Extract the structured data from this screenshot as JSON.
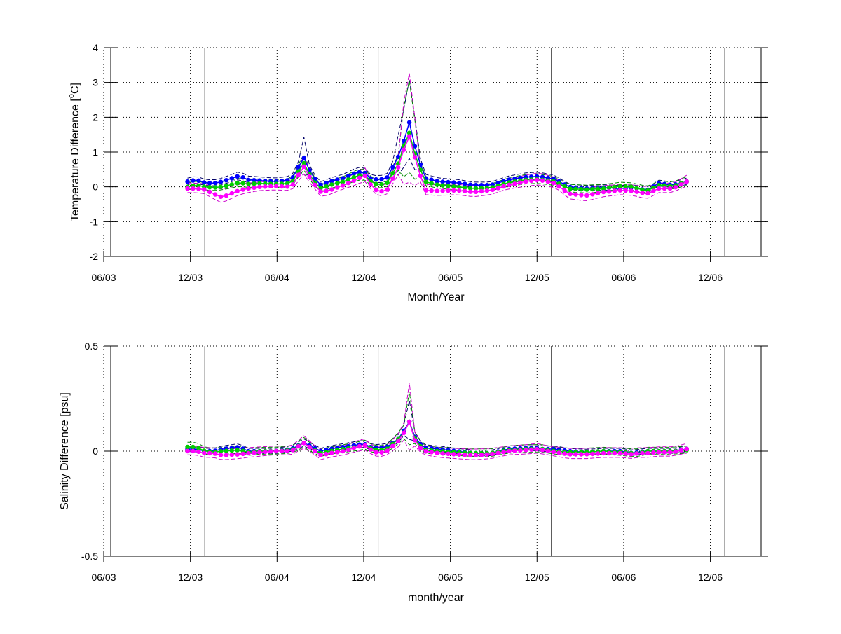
{
  "colors": {
    "background": "#ffffff",
    "axis": "#000000",
    "grid": "#000000",
    "blue": "#0000ff",
    "green": "#00cc00",
    "magenta": "#ff00ff",
    "dark_envelope": "#000066",
    "green_envelope": "#008800",
    "magenta_envelope": "#cc00cc"
  },
  "chart_data": [
    {
      "type": "line",
      "title": "",
      "xlabel": "Month/Year",
      "ylabel": "Temperature Difference [°C]",
      "ylabel_parts": {
        "pre": "Temperature Difference [",
        "sup": "o",
        "post": "C]"
      },
      "xlim": [
        2003.4167,
        2007.25
      ],
      "ylim": [
        -2,
        4
      ],
      "x_ticks": [
        {
          "x": 2003.4167,
          "label": "06/03"
        },
        {
          "x": 2003.9167,
          "label": "12/03"
        },
        {
          "x": 2004.4167,
          "label": "06/04"
        },
        {
          "x": 2004.9167,
          "label": "12/04"
        },
        {
          "x": 2005.4167,
          "label": "06/05"
        },
        {
          "x": 2005.9167,
          "label": "12/05"
        },
        {
          "x": 2006.4167,
          "label": "06/06"
        },
        {
          "x": 2006.9167,
          "label": "12/06"
        }
      ],
      "y_ticks": [
        {
          "y": -2,
          "label": "-2"
        },
        {
          "y": -1,
          "label": "-1"
        },
        {
          "y": 0,
          "label": "0"
        },
        {
          "y": 1,
          "label": "1"
        },
        {
          "y": 2,
          "label": "2"
        },
        {
          "y": 3,
          "label": "3"
        },
        {
          "y": 4,
          "label": "4"
        }
      ],
      "grid": true,
      "year_lines": [
        2004.0,
        2005.0,
        2006.0,
        2007.0
      ],
      "key_x": [
        2003.9,
        2003.95,
        2004.0,
        2004.05,
        2004.1,
        2004.2,
        2004.25,
        2004.32,
        2004.4,
        2004.5,
        2004.57,
        2004.62,
        2004.67,
        2004.72,
        2004.8,
        2004.88,
        2004.92,
        2004.95,
        2005.0,
        2005.05,
        2005.12,
        2005.15,
        2005.18,
        2005.22,
        2005.27,
        2005.35,
        2005.45,
        2005.55,
        2005.65,
        2005.75,
        2005.85,
        2005.92,
        2005.95,
        2006.02,
        2006.1,
        2006.2,
        2006.3,
        2006.4,
        2006.47,
        2006.5,
        2006.55,
        2006.62,
        2006.7,
        2006.78
      ],
      "series": [
        {
          "color": "blue",
          "values": [
            0.15,
            0.2,
            0.12,
            0.1,
            0.15,
            0.32,
            0.2,
            0.18,
            0.15,
            0.2,
            0.85,
            0.3,
            0.05,
            0.15,
            0.25,
            0.42,
            0.42,
            0.25,
            0.2,
            0.25,
            0.9,
            1.35,
            1.85,
            1.0,
            0.25,
            0.15,
            0.12,
            0.05,
            0.05,
            0.2,
            0.28,
            0.3,
            0.28,
            0.22,
            0.0,
            -0.05,
            -0.02,
            -0.05,
            -0.02,
            -0.05,
            -0.1,
            0.1,
            0.05,
            0.15
          ]
        },
        {
          "color": "green",
          "values": [
            0.0,
            0.05,
            0.0,
            -0.02,
            0.0,
            0.12,
            0.08,
            0.1,
            0.08,
            0.1,
            0.7,
            0.2,
            -0.05,
            0.05,
            0.15,
            0.32,
            0.35,
            0.18,
            0.05,
            0.1,
            0.7,
            1.2,
            1.55,
            0.8,
            0.15,
            0.05,
            0.0,
            -0.05,
            -0.03,
            0.12,
            0.2,
            0.22,
            0.2,
            0.15,
            -0.05,
            -0.08,
            -0.05,
            0.02,
            0.0,
            -0.05,
            -0.12,
            0.05,
            0.02,
            0.15
          ]
        },
        {
          "color": "magenta",
          "values": [
            -0.05,
            -0.05,
            -0.08,
            -0.2,
            -0.3,
            -0.1,
            -0.05,
            0.0,
            0.02,
            0.0,
            0.6,
            0.15,
            -0.15,
            -0.1,
            0.05,
            0.22,
            0.35,
            0.1,
            -0.15,
            -0.1,
            0.6,
            1.1,
            1.45,
            0.7,
            -0.1,
            -0.12,
            -0.1,
            -0.15,
            -0.1,
            0.05,
            0.15,
            0.2,
            0.18,
            0.1,
            -0.2,
            -0.25,
            -0.15,
            -0.1,
            -0.12,
            -0.15,
            -0.2,
            -0.05,
            -0.05,
            0.15
          ]
        }
      ]
    },
    {
      "type": "line",
      "title": "",
      "xlabel": "month/year",
      "ylabel": "Salinity Difference [psu]",
      "xlim": [
        2003.4167,
        2007.25
      ],
      "ylim": [
        -0.5,
        0.5
      ],
      "x_ticks": [
        {
          "x": 2003.4167,
          "label": "06/03"
        },
        {
          "x": 2003.9167,
          "label": "12/03"
        },
        {
          "x": 2004.4167,
          "label": "06/04"
        },
        {
          "x": 2004.9167,
          "label": "12/04"
        },
        {
          "x": 2005.4167,
          "label": "06/05"
        },
        {
          "x": 2005.9167,
          "label": "12/05"
        },
        {
          "x": 2006.4167,
          "label": "06/06"
        },
        {
          "x": 2006.9167,
          "label": "12/06"
        }
      ],
      "y_ticks": [
        {
          "y": -0.5,
          "label": "-0.5"
        },
        {
          "y": 0,
          "label": "0"
        },
        {
          "y": 0.5,
          "label": "0.5"
        }
      ],
      "grid": true,
      "year_lines": [
        2004.0,
        2005.0,
        2006.0,
        2007.0
      ],
      "key_x": [
        2003.9,
        2003.95,
        2004.0,
        2004.05,
        2004.1,
        2004.2,
        2004.25,
        2004.32,
        2004.4,
        2004.5,
        2004.57,
        2004.62,
        2004.67,
        2004.72,
        2004.8,
        2004.88,
        2004.92,
        2004.95,
        2005.0,
        2005.05,
        2005.12,
        2005.15,
        2005.18,
        2005.22,
        2005.27,
        2005.35,
        2005.45,
        2005.55,
        2005.65,
        2005.75,
        2005.85,
        2005.92,
        2005.95,
        2006.02,
        2006.1,
        2006.2,
        2006.3,
        2006.4,
        2006.47,
        2006.5,
        2006.55,
        2006.62,
        2006.7,
        2006.78
      ],
      "series": [
        {
          "color": "blue",
          "values": [
            0.01,
            0.01,
            0.0,
            0.0,
            0.01,
            0.02,
            0.0,
            0.0,
            0.0,
            0.01,
            0.04,
            0.02,
            0.0,
            0.01,
            0.02,
            0.03,
            0.035,
            0.02,
            0.015,
            0.02,
            0.06,
            0.1,
            0.14,
            0.05,
            0.015,
            0.01,
            0.0,
            -0.01,
            -0.01,
            0.01,
            0.015,
            0.015,
            0.01,
            0.01,
            0.0,
            -0.005,
            0.0,
            0.0,
            -0.01,
            -0.005,
            0.0,
            0.0,
            0.0,
            0.01
          ]
        },
        {
          "color": "green",
          "values": [
            0.02,
            0.02,
            0.0,
            -0.005,
            0.0,
            0.005,
            -0.005,
            0.0,
            0.0,
            0.005,
            0.04,
            0.01,
            -0.01,
            0.0,
            0.01,
            0.02,
            0.03,
            0.015,
            0.005,
            0.01,
            0.06,
            0.09,
            0.14,
            0.04,
            0.005,
            0.0,
            -0.005,
            -0.01,
            -0.01,
            0.005,
            0.01,
            0.01,
            0.01,
            0.0,
            -0.005,
            -0.005,
            0.0,
            -0.005,
            -0.01,
            -0.01,
            0.0,
            0.0,
            0.0,
            0.005
          ]
        },
        {
          "color": "magenta",
          "values": [
            0.0,
            0.0,
            -0.01,
            -0.01,
            -0.02,
            -0.015,
            -0.01,
            -0.005,
            0.0,
            0.0,
            0.04,
            0.01,
            -0.02,
            -0.01,
            0.0,
            0.02,
            0.03,
            0.01,
            -0.01,
            0.0,
            0.05,
            0.09,
            0.14,
            0.03,
            0.0,
            -0.01,
            -0.015,
            -0.02,
            -0.015,
            0.0,
            0.005,
            0.01,
            0.005,
            -0.005,
            -0.015,
            -0.015,
            -0.01,
            -0.01,
            -0.015,
            -0.01,
            -0.01,
            -0.005,
            -0.005,
            0.01
          ]
        }
      ]
    }
  ]
}
